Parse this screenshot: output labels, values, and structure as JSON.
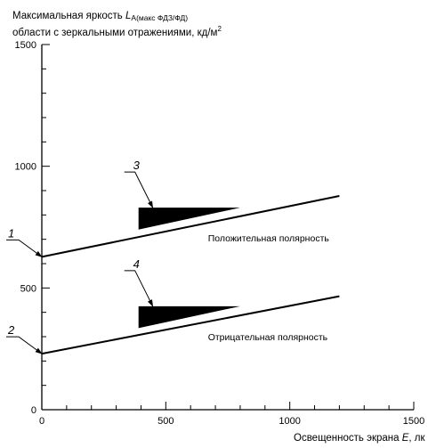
{
  "chart_data": {
    "type": "line",
    "ylabel_line1": {
      "text": "Максимальная яркость ",
      "symbol": "L",
      "subscript": "A(макс ФДЗ/ФД)"
    },
    "ylabel_line2": {
      "text": "области с зеркальными отражениями, кд/м",
      "superscript": "2"
    },
    "xlabel": {
      "text": "Освещенность экрана ",
      "symbol": "E",
      "unit": ", лк"
    },
    "xlim": [
      0,
      1500
    ],
    "ylim": [
      0,
      1500
    ],
    "x_ticks": [
      "0",
      "500",
      "1000",
      "1500"
    ],
    "y_ticks": [
      "0",
      "500",
      "1000",
      "1500"
    ],
    "x_minor_step": 100,
    "y_minor_step": 100,
    "grid": false,
    "series": [
      {
        "name": "Положительная полярность",
        "x": [
          0,
          1200
        ],
        "y": [
          628,
          878
        ],
        "callout": "1"
      },
      {
        "name": "Отрицательная полярность",
        "x": [
          0,
          1200
        ],
        "y": [
          230,
          466
        ],
        "callout": "2"
      }
    ],
    "wedges": [
      {
        "callout": "3",
        "x_start": 390,
        "x_end": 800,
        "y_top": 830,
        "y_bottom_left": 740
      },
      {
        "callout": "4",
        "x_start": 390,
        "x_end": 800,
        "y_top": 425,
        "y_bottom_left": 335
      }
    ]
  }
}
